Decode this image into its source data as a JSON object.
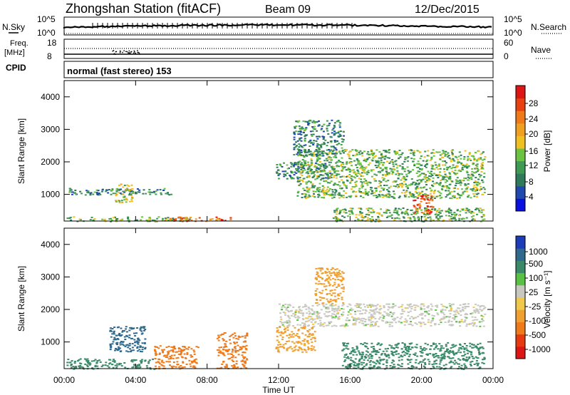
{
  "header": {
    "station": "Zhongshan Station (fitACF)",
    "beam": "Beam 09",
    "date": "12/Dec/2015"
  },
  "summary_panels": {
    "nsky_label": "N.Sky",
    "nsky_ticks": [
      "10^5",
      "10^0"
    ],
    "nsearch_label": "N.Search",
    "nsearch_ticks": [
      "10^5",
      "10^0"
    ],
    "freq_label_1": "Freq.",
    "freq_label_2": "[MHz]",
    "freq_ticks": [
      "18",
      "8"
    ],
    "nave_label": "Nave",
    "nave_ticks": [
      "60",
      "0"
    ],
    "cpid_label": "CPID",
    "cpid_value": "normal (fast stereo) 153"
  },
  "time_axis": {
    "label": "Time UT",
    "ticks": [
      "00:00",
      "04:00",
      "08:00",
      "12:00",
      "16:00",
      "20:00",
      "00:00"
    ]
  },
  "power_panel": {
    "ylabel": "Slant Range [km]",
    "yticks": [
      "4000",
      "3000",
      "2000",
      "1000"
    ],
    "colorbar_label": "Power [dB]",
    "colorbar_ticks": [
      "28",
      "24",
      "20",
      "16",
      "12",
      "8",
      "4"
    ],
    "colors": [
      "#0a10e0",
      "#2049b0",
      "#2e7a5a",
      "#3f9a53",
      "#6cc341",
      "#f0c020",
      "#f0a020",
      "#f07a1a",
      "#e84010",
      "#dd1515"
    ]
  },
  "velocity_panel": {
    "ylabel": "Slant Range [km]",
    "yticks": [
      "4000",
      "3000",
      "2000",
      "1000"
    ],
    "colorbar_label": "Velocity [m s⁻¹]",
    "colorbar_ticks": [
      "1000",
      "500",
      "100",
      "25",
      "-25",
      "-100",
      "-500",
      "-1000"
    ],
    "colors": [
      "#1d3cb8",
      "#2f6a8c",
      "#3a8a6a",
      "#59c244",
      "#c8c8c0",
      "#f0c84a",
      "#f0a030",
      "#f07a1a",
      "#e83a10",
      "#dd1515"
    ]
  },
  "chart_data": {
    "type": "heatmap",
    "x_range_hours": [
      0,
      24
    ],
    "range_km": [
      180,
      4500
    ],
    "power_blocks": [
      {
        "t0": 0.1,
        "t1": 7.0,
        "r0": 180,
        "r1": 330,
        "value": 12
      },
      {
        "t0": 5.8,
        "t1": 9.4,
        "r0": 180,
        "r1": 320,
        "value": 24
      },
      {
        "t0": 0.2,
        "t1": 6.0,
        "r0": 1000,
        "r1": 1200,
        "value": 8
      },
      {
        "t0": 2.8,
        "t1": 3.8,
        "r0": 750,
        "r1": 1350,
        "value": 16
      },
      {
        "t0": 11.8,
        "t1": 15.0,
        "r0": 1500,
        "r1": 2000,
        "value": 8
      },
      {
        "t0": 13.0,
        "t1": 23.5,
        "r0": 900,
        "r1": 2400,
        "value": 12
      },
      {
        "t0": 19.5,
        "t1": 20.6,
        "r0": 400,
        "r1": 1000,
        "value": 26
      },
      {
        "t0": 15.0,
        "t1": 23.5,
        "r0": 180,
        "r1": 600,
        "value": 12
      },
      {
        "t0": 12.8,
        "t1": 15.6,
        "r0": 2200,
        "r1": 3300,
        "value": 8
      }
    ],
    "velocity_blocks": [
      {
        "t0": 0.1,
        "t1": 5.0,
        "r0": 180,
        "r1": 500,
        "value": 100
      },
      {
        "t0": 5.0,
        "t1": 7.5,
        "r0": 180,
        "r1": 900,
        "value": -500
      },
      {
        "t0": 8.5,
        "t1": 10.2,
        "r0": 200,
        "r1": 1300,
        "value": -500
      },
      {
        "t0": 11.8,
        "t1": 14.0,
        "r0": 700,
        "r1": 1500,
        "value": -100
      },
      {
        "t0": 12.0,
        "t1": 23.5,
        "r0": 1500,
        "r1": 2200,
        "value": 0
      },
      {
        "t0": 15.5,
        "t1": 23.5,
        "r0": 180,
        "r1": 1000,
        "value": 100
      },
      {
        "t0": 14.0,
        "t1": 15.6,
        "r0": 2200,
        "r1": 3300,
        "value": -100
      },
      {
        "t0": 2.5,
        "t1": 4.5,
        "r0": 700,
        "r1": 1500,
        "value": 500
      }
    ]
  }
}
